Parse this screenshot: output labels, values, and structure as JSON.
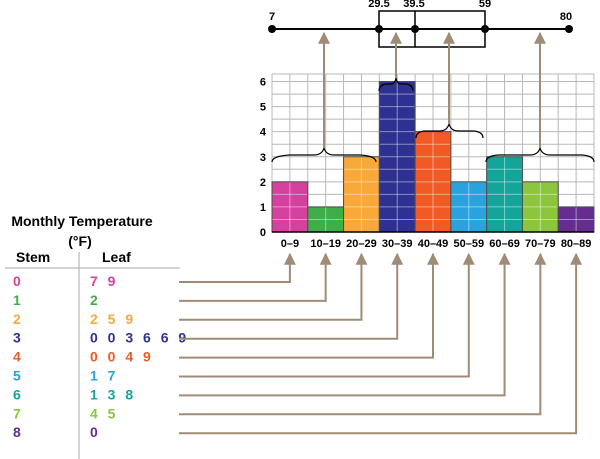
{
  "box_plot": {
    "min": "7",
    "q1": "29.5",
    "median": "39.5",
    "q3": "59",
    "max": "80"
  },
  "stem_leaf": {
    "title_line1": "Monthly Temperature",
    "title_line2": "(°F)",
    "stem_header": "Stem",
    "leaf_header": "Leaf",
    "rows": [
      {
        "stem": "0",
        "leaves": "7 9",
        "color": "#d6409f"
      },
      {
        "stem": "1",
        "leaves": "2",
        "color": "#3fae49"
      },
      {
        "stem": "2",
        "leaves": "2 5 9",
        "color": "#f9a83a"
      },
      {
        "stem": "3",
        "leaves": "0 0 3 6 6 9",
        "color": "#2e3192"
      },
      {
        "stem": "4",
        "leaves": "0 0 4 9",
        "color": "#f15a24"
      },
      {
        "stem": "5",
        "leaves": "1 7",
        "color": "#29a3dd"
      },
      {
        "stem": "6",
        "leaves": "1 3 8",
        "color": "#14a59a"
      },
      {
        "stem": "7",
        "leaves": "4 5",
        "color": "#8cc63f"
      },
      {
        "stem": "8",
        "leaves": "0",
        "color": "#662d91"
      }
    ]
  },
  "chart_data": {
    "type": "bar",
    "categories": [
      "0–9",
      "10–19",
      "20–29",
      "30–39",
      "40–49",
      "50–59",
      "60–69",
      "70–79",
      "80–89"
    ],
    "values": [
      2,
      1,
      3,
      6,
      4,
      2,
      3,
      2,
      1
    ],
    "colors": [
      "#d6409f",
      "#3fae49",
      "#f9a83a",
      "#2e3192",
      "#f15a24",
      "#29a3dd",
      "#14a59a",
      "#8cc63f",
      "#662d91"
    ],
    "y_ticks": [
      "0",
      "1",
      "2",
      "3",
      "4",
      "5",
      "6"
    ],
    "ylim": [
      0,
      6.3
    ],
    "grid": true
  }
}
